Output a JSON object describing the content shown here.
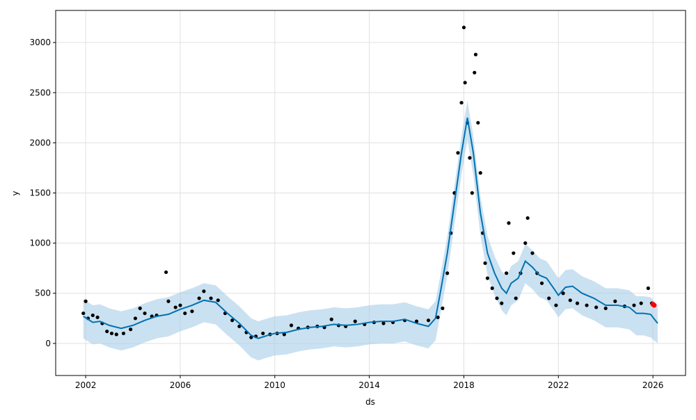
{
  "chart_data": {
    "type": "forecast",
    "xlabel": "ds",
    "ylabel": "y",
    "xlim": [
      2000.73,
      2027.38
    ],
    "ylim": [
      -320,
      3320
    ],
    "xticks": [
      2002,
      2006,
      2010,
      2014,
      2018,
      2022,
      2026
    ],
    "yticks": [
      0,
      500,
      1000,
      1500,
      2000,
      2500,
      3000
    ],
    "grid": true,
    "observed": {
      "color": "#000000",
      "x": [
        2001.9,
        2002.0,
        2002.1,
        2002.3,
        2002.5,
        2002.7,
        2002.9,
        2003.1,
        2003.3,
        2003.6,
        2003.9,
        2004.1,
        2004.3,
        2004.5,
        2004.8,
        2005.0,
        2005.4,
        2005.5,
        2005.8,
        2006.0,
        2006.2,
        2006.5,
        2006.8,
        2007.0,
        2007.3,
        2007.6,
        2007.9,
        2008.2,
        2008.5,
        2008.8,
        2009.0,
        2009.2,
        2009.5,
        2009.8,
        2010.1,
        2010.4,
        2010.7,
        2011.0,
        2011.4,
        2011.8,
        2012.1,
        2012.4,
        2012.7,
        2013.0,
        2013.4,
        2013.8,
        2014.2,
        2014.6,
        2015.0,
        2015.5,
        2016.0,
        2016.5,
        2016.9,
        2017.1,
        2017.3,
        2017.45,
        2017.6,
        2017.75,
        2017.9,
        2018.0,
        2018.05,
        2018.15,
        2018.25,
        2018.35,
        2018.45,
        2018.5,
        2018.6,
        2018.7,
        2018.8,
        2018.9,
        2019.0,
        2019.2,
        2019.4,
        2019.6,
        2019.8,
        2019.9,
        2020.1,
        2020.2,
        2020.4,
        2020.6,
        2020.7,
        2020.9,
        2021.1,
        2021.3,
        2021.6,
        2021.9,
        2022.2,
        2022.5,
        2022.8,
        2023.2,
        2023.6,
        2024.0,
        2024.4,
        2024.8,
        2025.2,
        2025.5,
        2025.8,
        2025.95
      ],
      "y": [
        300,
        420,
        250,
        280,
        260,
        200,
        120,
        100,
        90,
        100,
        140,
        250,
        350,
        300,
        270,
        280,
        710,
        420,
        360,
        380,
        300,
        320,
        450,
        520,
        450,
        430,
        300,
        230,
        170,
        110,
        60,
        70,
        100,
        90,
        100,
        90,
        180,
        150,
        160,
        170,
        160,
        240,
        180,
        170,
        220,
        190,
        210,
        200,
        210,
        230,
        220,
        230,
        260,
        350,
        700,
        1100,
        1500,
        1900,
        2400,
        3150,
        2600,
        2200,
        1850,
        1500,
        2700,
        2880,
        2200,
        1700,
        1100,
        800,
        650,
        550,
        450,
        400,
        700,
        1200,
        900,
        450,
        700,
        1000,
        1250,
        900,
        700,
        600,
        450,
        380,
        500,
        430,
        400,
        380,
        360,
        350,
        420,
        370,
        380,
        400,
        550,
        400
      ]
    },
    "recent": {
      "color": "#ff0000",
      "x": [
        2026.0,
        2026.05
      ],
      "y": [
        390,
        380
      ]
    },
    "forecast": {
      "color": "#0072B2",
      "x": [
        2001.9,
        2002.3,
        2002.6,
        2003,
        2003.5,
        2004,
        2004.5,
        2005,
        2005.5,
        2006,
        2006.5,
        2007,
        2007.5,
        2008,
        2008.5,
        2009,
        2009.3,
        2009.7,
        2010,
        2010.5,
        2011,
        2011.5,
        2012,
        2012.5,
        2013,
        2013.5,
        2014,
        2014.5,
        2015,
        2015.5,
        2016,
        2016.5,
        2016.8,
        2017,
        2017.3,
        2017.6,
        2017.9,
        2018.15,
        2018.4,
        2018.7,
        2019,
        2019.3,
        2019.6,
        2019.8,
        2020,
        2020.3,
        2020.6,
        2020.9,
        2021.2,
        2021.5,
        2021.8,
        2022,
        2022.3,
        2022.6,
        2023,
        2023.5,
        2024,
        2024.5,
        2025,
        2025.3,
        2025.6,
        2025.9,
        2026.2
      ],
      "values": [
        270,
        210,
        220,
        180,
        150,
        180,
        230,
        270,
        290,
        340,
        380,
        430,
        410,
        300,
        200,
        80,
        50,
        80,
        100,
        110,
        140,
        160,
        170,
        190,
        180,
        190,
        210,
        220,
        220,
        240,
        200,
        170,
        250,
        500,
        900,
        1400,
        1900,
        2250,
        1900,
        1300,
        900,
        700,
        550,
        500,
        600,
        650,
        820,
        760,
        680,
        650,
        550,
        480,
        560,
        570,
        500,
        450,
        380,
        380,
        360,
        300,
        300,
        290,
        200
      ],
      "band_color": "#a6cde8",
      "upper": [
        440,
        380,
        390,
        350,
        320,
        350,
        400,
        440,
        460,
        510,
        550,
        600,
        580,
        470,
        370,
        250,
        220,
        250,
        270,
        280,
        310,
        330,
        340,
        360,
        350,
        360,
        380,
        390,
        390,
        410,
        370,
        340,
        420,
        670,
        1070,
        1570,
        2070,
        2420,
        2070,
        1470,
        1070,
        870,
        720,
        670,
        770,
        820,
        990,
        930,
        850,
        820,
        720,
        650,
        730,
        740,
        670,
        620,
        550,
        550,
        530,
        470,
        470,
        460,
        380
      ],
      "lower": [
        50,
        -10,
        0,
        -40,
        -70,
        -40,
        10,
        50,
        70,
        120,
        160,
        210,
        190,
        80,
        -20,
        -140,
        -170,
        -140,
        -120,
        -110,
        -80,
        -60,
        -50,
        -30,
        -40,
        -30,
        -10,
        0,
        0,
        20,
        -20,
        -50,
        30,
        280,
        680,
        1180,
        1680,
        2030,
        1680,
        1080,
        680,
        480,
        330,
        280,
        380,
        430,
        600,
        540,
        460,
        430,
        330,
        260,
        340,
        350,
        280,
        230,
        160,
        160,
        140,
        80,
        80,
        60,
        0
      ]
    }
  }
}
